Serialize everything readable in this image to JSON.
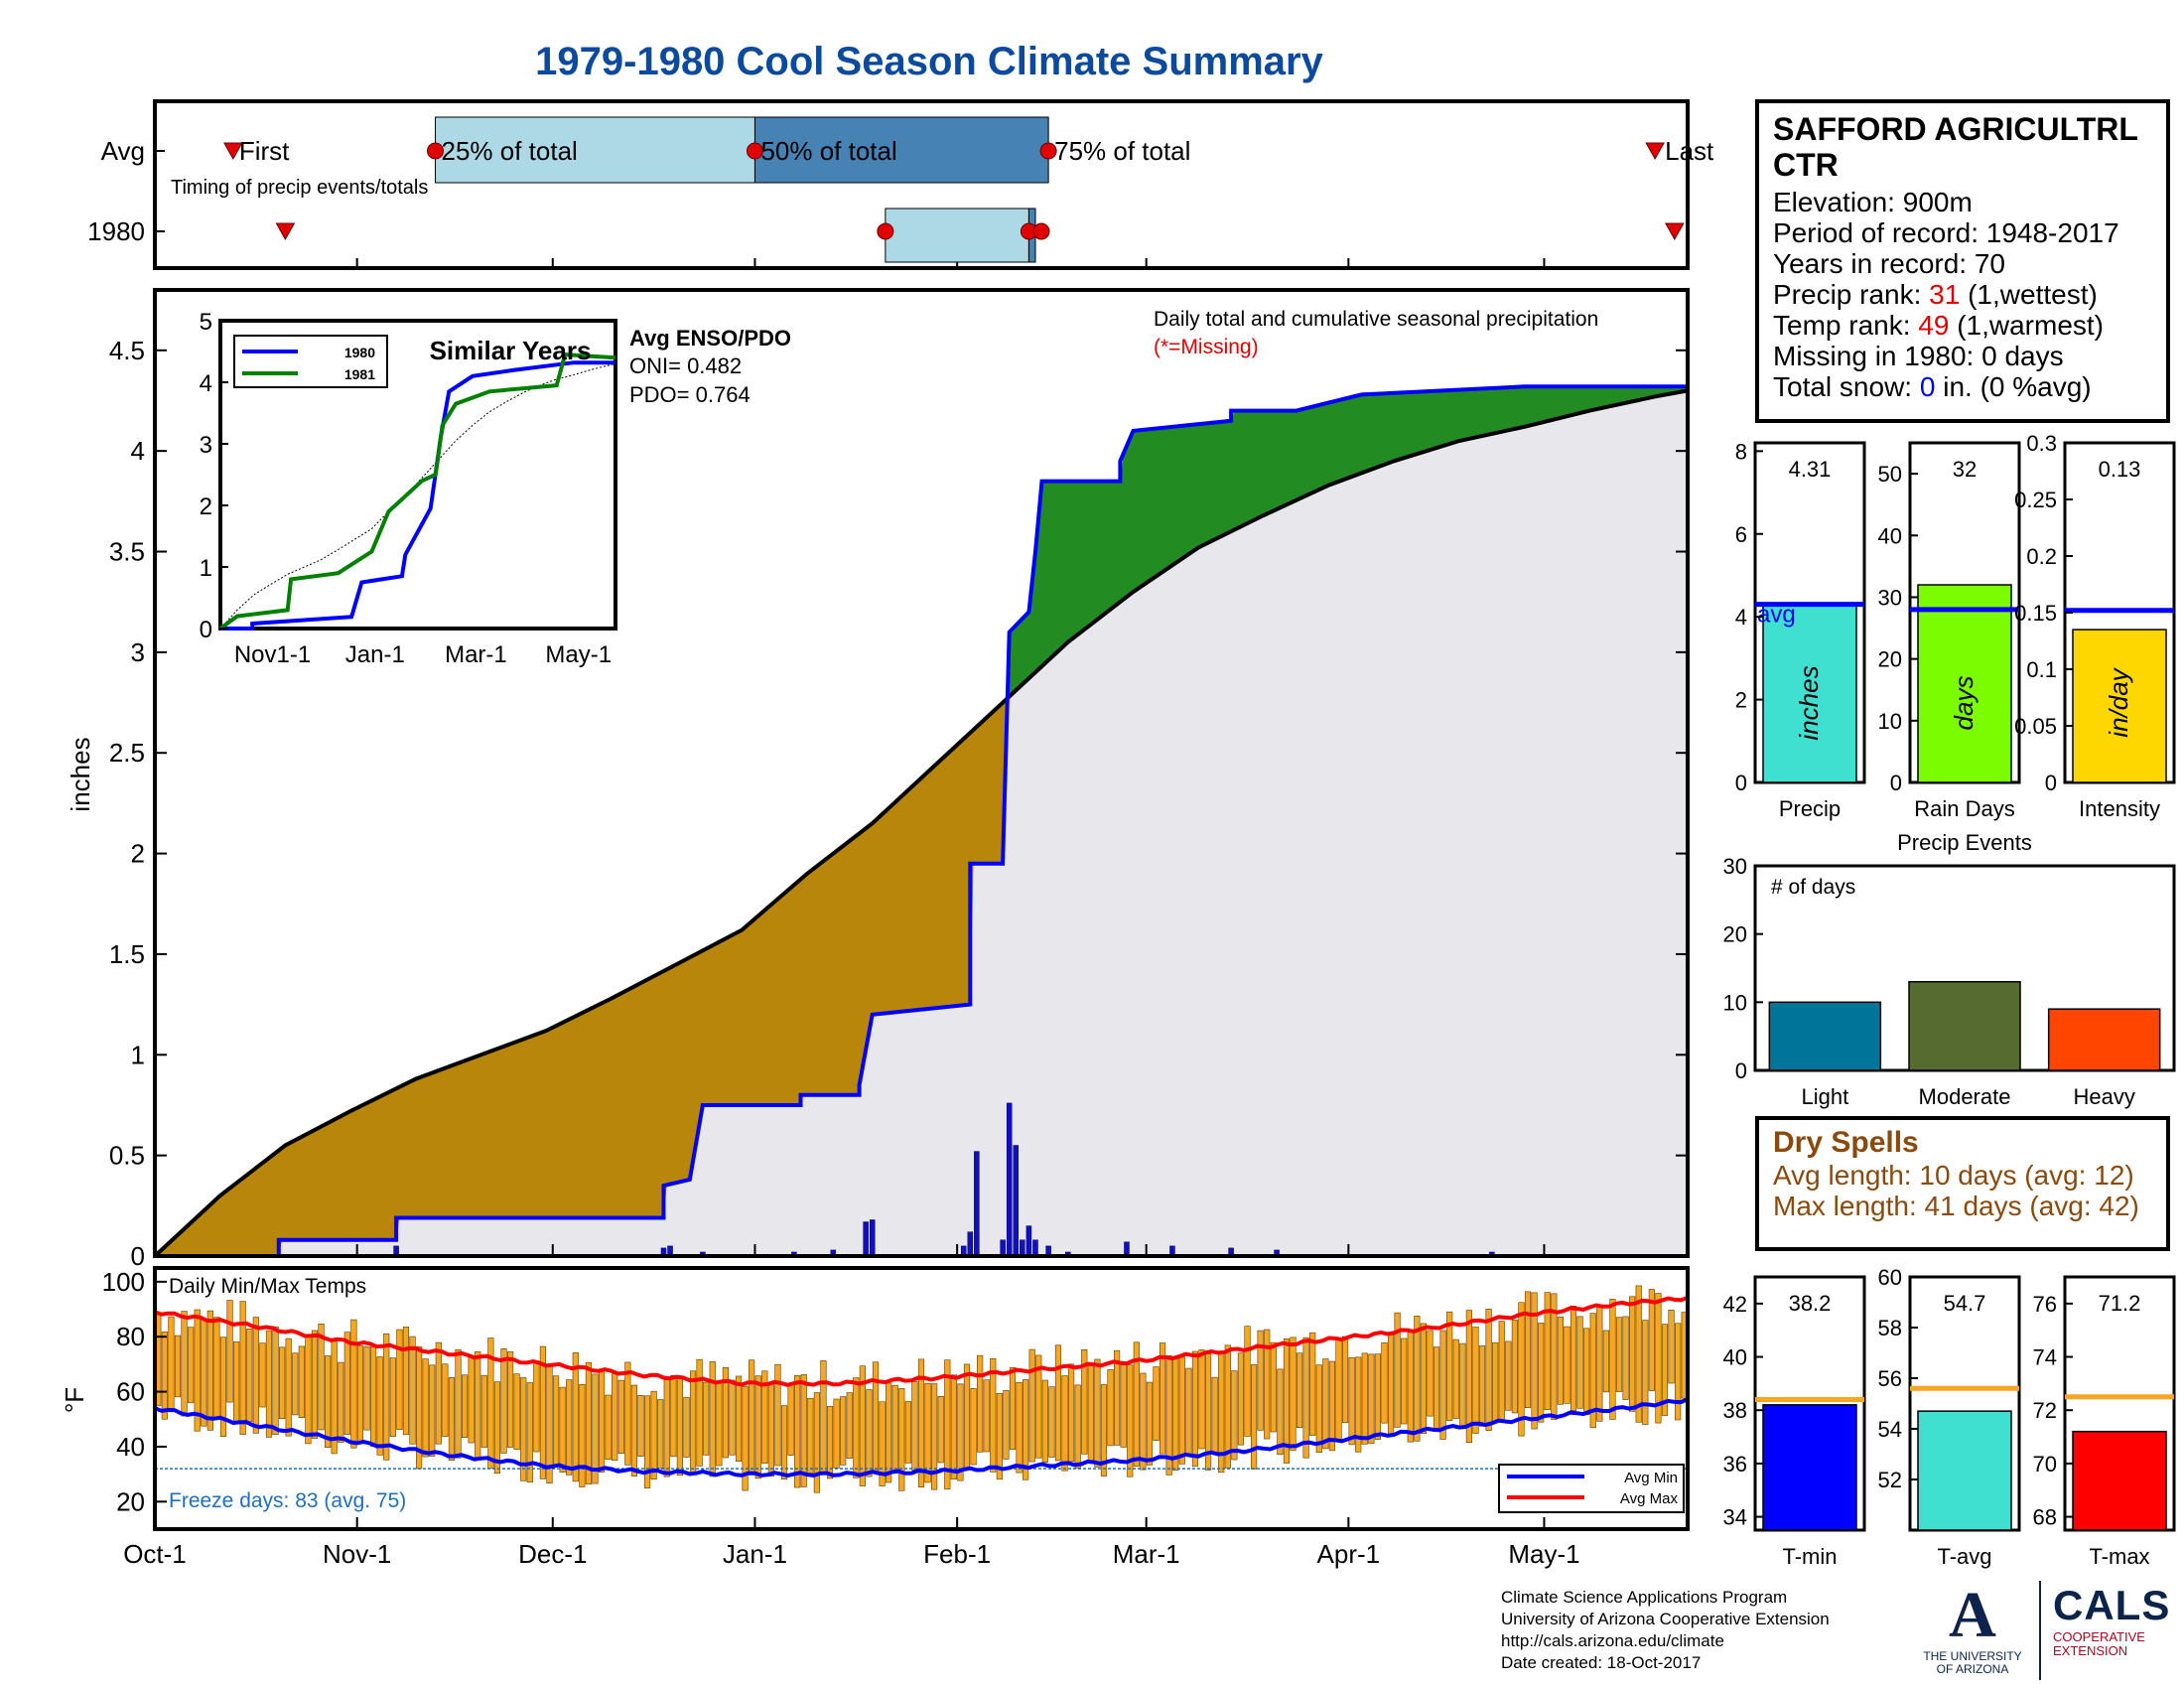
{
  "title": "1979-1980 Cool Season Climate Summary",
  "station": {
    "name": "SAFFORD AGRICULTRL CTR",
    "elevation": "Elevation: 900m",
    "period": "Period of record: 1948-2017",
    "years": "Years in record: 70",
    "precip_rank_label": "Precip rank: ",
    "precip_rank_value": "31",
    "precip_rank_note": " (1,wettest)",
    "temp_rank_label": "Temp rank: ",
    "temp_rank_value": "49",
    "temp_rank_note": " (1,warmest)",
    "missing": "Missing in 1980: 0 days",
    "snow_label": "Total snow: ",
    "snow_value": "0",
    "snow_note": " in. (0 %avg)"
  },
  "dry_spells": {
    "title": "Dry Spells",
    "avg": "Avg length: 10 days (avg: 12)",
    "max": "Max length: 41 days (avg: 42)"
  },
  "credits": {
    "line1": "Climate Science Applications Program",
    "line2": "University of Arizona Cooperative Extension",
    "line3": "http://cals.arizona.edu/climate",
    "line4": " Date created: 18-Oct-2017"
  },
  "logos": {
    "ua_line1": "THE UNIVERSITY",
    "ua_line2": "OF ARIZONA",
    "cals": "CALS",
    "cals_line1": "COOPERATIVE",
    "cals_line2": "EXTENSION"
  },
  "colors": {
    "deficit": "#b8860b",
    "surplus": "#228b22",
    "background_fill": "#e8e8ec",
    "series_1980": "#0000ff",
    "series_1981": "#008000",
    "avg_min": "#0000ff",
    "avg_max": "#ff0000",
    "temp_bar": "#f5a623"
  },
  "chart_data": [
    {
      "type": "box_timeline",
      "name": "timing",
      "label": "Timing of precip events/totals",
      "row_labels": [
        "Avg",
        "1980"
      ],
      "marker_labels": [
        "First",
        "25% of total",
        "50% of total",
        "75% of total",
        "Last"
      ],
      "x_ticks": [
        "Oct-1",
        "Nov-1",
        "Dec-1",
        "Jan-1",
        "Feb-1",
        "Mar-1",
        "Apr-1",
        "May-1"
      ],
      "avg": {
        "first": "Oct-13",
        "p25": "Nov-13",
        "p50": "Jan-1",
        "p75": "Feb-15",
        "last": "May-18"
      },
      "y1980": {
        "first": "Oct-21",
        "p25": "Jan-21",
        "p50": "Feb-12",
        "p75": "Feb-13",
        "last": "May-21"
      }
    },
    {
      "type": "area",
      "name": "cumulative_precip",
      "title": "Daily total and cumulative seasonal precipitation",
      "missing_note": "(*=Missing)",
      "ylabel": "inches",
      "ylim": [
        0,
        4.8
      ],
      "y_ticks": [
        0,
        0.5,
        1,
        1.5,
        2,
        2.5,
        3,
        3.5,
        4,
        4.5
      ],
      "x_ticks": [
        "Oct-1",
        "Nov-1",
        "Dec-1",
        "Jan-1",
        "Feb-1",
        "Mar-1",
        "Apr-1",
        "May-1"
      ],
      "avg_cumulative": [
        [
          0,
          0
        ],
        [
          10,
          0.3
        ],
        [
          20,
          0.55
        ],
        [
          30,
          0.72
        ],
        [
          40,
          0.88
        ],
        [
          50,
          1.0
        ],
        [
          60,
          1.12
        ],
        [
          70,
          1.28
        ],
        [
          80,
          1.45
        ],
        [
          90,
          1.62
        ],
        [
          100,
          1.9
        ],
        [
          110,
          2.15
        ],
        [
          120,
          2.45
        ],
        [
          130,
          2.75
        ],
        [
          140,
          3.05
        ],
        [
          150,
          3.3
        ],
        [
          160,
          3.52
        ],
        [
          170,
          3.68
        ],
        [
          180,
          3.83
        ],
        [
          190,
          3.95
        ],
        [
          200,
          4.05
        ],
        [
          210,
          4.12
        ],
        [
          220,
          4.2
        ],
        [
          230,
          4.27
        ],
        [
          235,
          4.3
        ]
      ],
      "cumulative_1980": [
        [
          0,
          0
        ],
        [
          19,
          0
        ],
        [
          19,
          0.08
        ],
        [
          37,
          0.08
        ],
        [
          37,
          0.19
        ],
        [
          78,
          0.19
        ],
        [
          78,
          0.35
        ],
        [
          82,
          0.38
        ],
        [
          84,
          0.75
        ],
        [
          99,
          0.75
        ],
        [
          99,
          0.8
        ],
        [
          108,
          0.8
        ],
        [
          108,
          0.85
        ],
        [
          110,
          1.2
        ],
        [
          125,
          1.25
        ],
        [
          125,
          1.95
        ],
        [
          130,
          1.95
        ],
        [
          131,
          3.1
        ],
        [
          134,
          3.2
        ],
        [
          135,
          3.5
        ],
        [
          136,
          3.85
        ],
        [
          148,
          3.85
        ],
        [
          148,
          3.95
        ],
        [
          150,
          4.1
        ],
        [
          165,
          4.15
        ],
        [
          165,
          4.2
        ],
        [
          175,
          4.2
        ],
        [
          185,
          4.28
        ],
        [
          210,
          4.32
        ],
        [
          235,
          4.32
        ]
      ],
      "daily_1980": [
        [
          37,
          0.05
        ],
        [
          78,
          0.04
        ],
        [
          79,
          0.05
        ],
        [
          84,
          0.02
        ],
        [
          98,
          0.02
        ],
        [
          104,
          0.03
        ],
        [
          109,
          0.17
        ],
        [
          110,
          0.18
        ],
        [
          124,
          0.05
        ],
        [
          125,
          0.12
        ],
        [
          126,
          0.52
        ],
        [
          130,
          0.08
        ],
        [
          131,
          0.76
        ],
        [
          132,
          0.55
        ],
        [
          133,
          0.08
        ],
        [
          134,
          0.15
        ],
        [
          135,
          0.08
        ],
        [
          137,
          0.05
        ],
        [
          140,
          0.02
        ],
        [
          149,
          0.07
        ],
        [
          156,
          0.05
        ],
        [
          165,
          0.04
        ],
        [
          172,
          0.03
        ],
        [
          205,
          0.02
        ]
      ]
    },
    {
      "type": "line",
      "name": "similar_years",
      "title": "Similar Years",
      "ylim": [
        0,
        5
      ],
      "y_ticks": [
        0,
        1,
        2,
        3,
        4,
        5
      ],
      "x_ticks": [
        "Nov1-1",
        "Jan-1",
        "Mar-1",
        "May-1"
      ],
      "series": [
        {
          "name": "1980",
          "values": [
            [
              0,
              0
            ],
            [
              19,
              0
            ],
            [
              19,
              0.08
            ],
            [
              78,
              0.19
            ],
            [
              84,
              0.75
            ],
            [
              108,
              0.85
            ],
            [
              110,
              1.2
            ],
            [
              125,
              1.95
            ],
            [
              131,
              3.1
            ],
            [
              136,
              3.85
            ],
            [
              150,
              4.1
            ],
            [
              175,
              4.2
            ],
            [
              210,
              4.32
            ],
            [
              235,
              4.32
            ]
          ]
        },
        {
          "name": "1981",
          "values": [
            [
              0,
              0
            ],
            [
              10,
              0.2
            ],
            [
              40,
              0.3
            ],
            [
              42,
              0.8
            ],
            [
              70,
              0.9
            ],
            [
              90,
              1.25
            ],
            [
              100,
              1.9
            ],
            [
              120,
              2.4
            ],
            [
              128,
              2.5
            ],
            [
              132,
              3.3
            ],
            [
              140,
              3.65
            ],
            [
              160,
              3.85
            ],
            [
              200,
              3.95
            ],
            [
              205,
              4.45
            ],
            [
              235,
              4.4
            ]
          ]
        }
      ]
    },
    {
      "type": "text",
      "name": "enso",
      "title": "Avg ENSO/PDO",
      "oni": "ONI= 0.482",
      "pdo": "PDO= 0.764"
    },
    {
      "type": "bar",
      "name": "season_totals",
      "panels": [
        {
          "label": "Precip",
          "unit": "inches",
          "value": 4.31,
          "avg": 4.3,
          "ylim": [
            0,
            8.2
          ],
          "y_ticks": [
            0,
            2,
            4,
            6,
            8
          ],
          "color": "#40e0d0",
          "value_label": "4.31",
          "avg_label": "avg"
        },
        {
          "label": "Rain Days",
          "unit": "days",
          "value": 32,
          "avg": 28,
          "ylim": [
            0,
            55
          ],
          "y_ticks": [
            0,
            10,
            20,
            30,
            40,
            50
          ],
          "color": "#7cfc00",
          "value_label": "32"
        },
        {
          "label": "Intensity",
          "unit": "in/day",
          "value": 0.135,
          "avg": 0.152,
          "ylim": [
            0,
            0.3
          ],
          "y_ticks": [
            0,
            0.05,
            0.1,
            0.15,
            0.2,
            0.25,
            0.3
          ],
          "color": "#ffd700",
          "value_label": "0.13"
        }
      ]
    },
    {
      "type": "bar",
      "name": "precip_events",
      "title": "Precip Events",
      "ylabel": "# of days",
      "categories": [
        "Light",
        "Moderate",
        "Heavy"
      ],
      "values": [
        10,
        13,
        9
      ],
      "colors": [
        "#00759a",
        "#556b2f",
        "#ff4500"
      ],
      "ylim": [
        0,
        30
      ],
      "y_ticks": [
        0,
        10,
        20,
        30
      ]
    },
    {
      "type": "bar",
      "name": "daily_temps",
      "title": "Daily Min/Max Temps",
      "ylabel": "°F",
      "ylim": [
        10,
        105
      ],
      "y_ticks": [
        20,
        40,
        60,
        80,
        100
      ],
      "freeze_line": 32,
      "freeze_label": "Freeze days: 83 (avg. 75)",
      "legend": [
        "Avg Min",
        "Avg Max"
      ],
      "x_ticks": [
        "Oct-1",
        "Nov-1",
        "Dec-1",
        "Jan-1",
        "Feb-1",
        "Mar-1",
        "Apr-1",
        "May-1"
      ],
      "avg_max": [
        [
          0,
          89
        ],
        [
          15,
          84
        ],
        [
          30,
          78
        ],
        [
          45,
          74
        ],
        [
          60,
          70
        ],
        [
          75,
          66
        ],
        [
          90,
          63
        ],
        [
          105,
          63
        ],
        [
          120,
          65
        ],
        [
          135,
          68
        ],
        [
          150,
          71
        ],
        [
          165,
          75
        ],
        [
          180,
          79
        ],
        [
          195,
          83
        ],
        [
          210,
          88
        ],
        [
          225,
          92
        ],
        [
          235,
          94
        ]
      ],
      "avg_min": [
        [
          0,
          54
        ],
        [
          15,
          48
        ],
        [
          30,
          42
        ],
        [
          45,
          37
        ],
        [
          60,
          33
        ],
        [
          75,
          31
        ],
        [
          90,
          30
        ],
        [
          105,
          30
        ],
        [
          120,
          31
        ],
        [
          135,
          33
        ],
        [
          150,
          35
        ],
        [
          165,
          38
        ],
        [
          180,
          42
        ],
        [
          195,
          46
        ],
        [
          210,
          50
        ],
        [
          225,
          54
        ],
        [
          235,
          57
        ]
      ]
    },
    {
      "type": "bar",
      "name": "season_temps",
      "panels": [
        {
          "label": "T-min",
          "value": 38.2,
          "avg": 38.4,
          "ylim": [
            33.5,
            43
          ],
          "y_ticks": [
            34,
            36,
            38,
            40,
            42
          ],
          "color": "#0000ff",
          "value_label": "38.2"
        },
        {
          "label": "T-avg",
          "value": 54.7,
          "avg": 55.6,
          "ylim": [
            50,
            60
          ],
          "y_ticks": [
            52,
            54,
            56,
            58,
            60
          ],
          "color": "#40e0d0",
          "value_label": "54.7"
        },
        {
          "label": "T-max",
          "value": 71.2,
          "avg": 72.5,
          "ylim": [
            67.5,
            77
          ],
          "y_ticks": [
            68,
            70,
            72,
            74,
            76
          ],
          "color": "#ff0000",
          "value_label": "71.2"
        }
      ]
    }
  ]
}
